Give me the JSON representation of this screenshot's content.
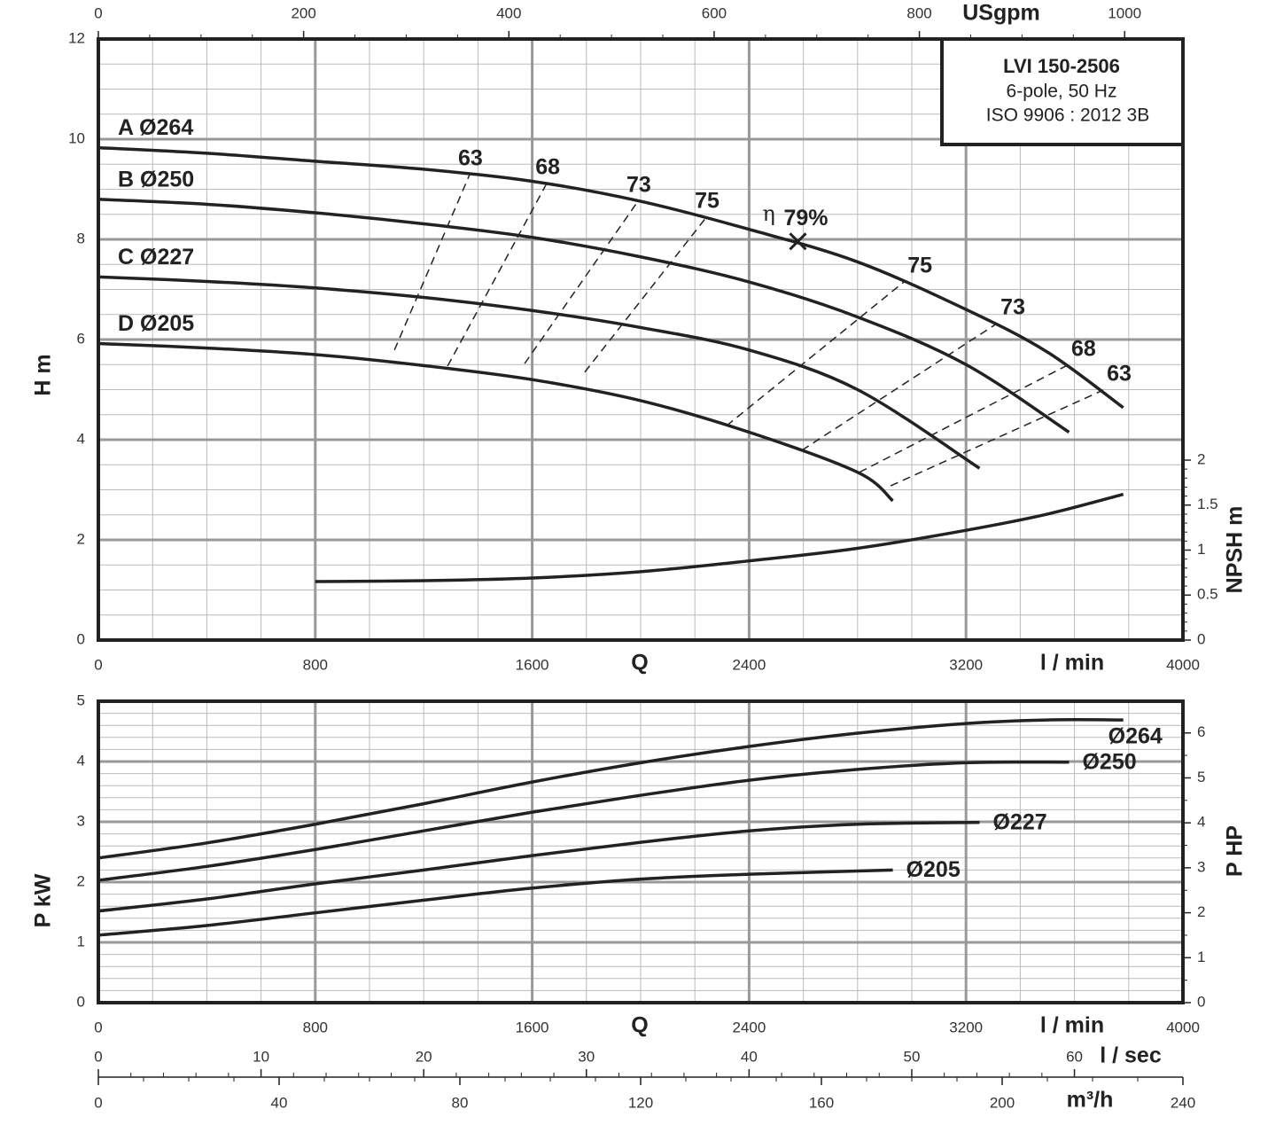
{
  "chart_data": [
    {
      "type": "line",
      "title": "LVI 150-2506",
      "subtitle": "6-pole, 50 Hz",
      "note": "ISO 9906 : 2012 3B",
      "xlabel": "Q",
      "xunit": "l / min",
      "ylabel": "H m",
      "y2label": "NPSH m",
      "x2label": "USgpm",
      "xlim": [
        0,
        4000
      ],
      "xticks": [
        0,
        800,
        1600,
        2400,
        3200,
        4000
      ],
      "x2lim": [
        0,
        1056.8
      ],
      "x2ticks": [
        0,
        200,
        400,
        600,
        800,
        1000
      ],
      "ylim": [
        0,
        12
      ],
      "yticks": [
        0,
        2,
        4,
        6,
        8,
        10,
        12
      ],
      "y2lim": [
        0,
        6.68
      ],
      "y2ticks": [
        0,
        0.5,
        1,
        1.5,
        2
      ],
      "grid": true,
      "color": "#222222",
      "series": [
        {
          "name": "A Ø264",
          "x": [
            0,
            400,
            800,
            1200,
            1600,
            2000,
            2400,
            2800,
            3200,
            3500,
            3780
          ],
          "values": [
            9.83,
            9.72,
            9.56,
            9.4,
            9.16,
            8.76,
            8.2,
            7.55,
            6.6,
            5.75,
            4.64
          ]
        },
        {
          "name": "B Ø250",
          "x": [
            0,
            400,
            800,
            1200,
            1600,
            2000,
            2400,
            2800,
            3200,
            3580
          ],
          "values": [
            8.8,
            8.7,
            8.53,
            8.31,
            8.04,
            7.65,
            7.15,
            6.45,
            5.5,
            4.15
          ]
        },
        {
          "name": "C Ø227",
          "x": [
            0,
            400,
            800,
            1200,
            1600,
            2000,
            2400,
            2800,
            3250
          ],
          "values": [
            7.25,
            7.16,
            7.03,
            6.84,
            6.58,
            6.24,
            5.79,
            5.0,
            3.43
          ]
        },
        {
          "name": "D Ø205",
          "x": [
            0,
            400,
            800,
            1200,
            1600,
            2000,
            2400,
            2800,
            2930
          ],
          "values": [
            5.92,
            5.83,
            5.7,
            5.48,
            5.2,
            4.78,
            4.15,
            3.35,
            2.78
          ]
        },
        {
          "axis": "y2",
          "x": [
            800,
            1200,
            1600,
            2000,
            2400,
            2800,
            3200,
            3500,
            3780
          ],
          "values": [
            0.65,
            0.66,
            0.69,
            0.76,
            0.88,
            1.02,
            1.22,
            1.4,
            1.62
          ]
        }
      ],
      "efficiency_lines": [
        {
          "name": "63",
          "x": [
            1092,
            1369
          ],
          "values": [
            5.79,
            9.29
          ]
        },
        {
          "name": "68",
          "x": [
            1288,
            1654
          ],
          "values": [
            5.47,
            9.12
          ]
        },
        {
          "name": "73",
          "x": [
            1572,
            1990
          ],
          "values": [
            5.52,
            8.76
          ]
        },
        {
          "name": "75",
          "x": [
            1794,
            2242
          ],
          "values": [
            5.35,
            8.44
          ]
        },
        {
          "name": "75",
          "x": [
            2317,
            2971
          ],
          "values": [
            4.28,
            7.15
          ]
        },
        {
          "name": "73",
          "x": [
            2595,
            3314
          ],
          "values": [
            3.79,
            6.32
          ]
        },
        {
          "name": "68",
          "x": [
            2807,
            3575
          ],
          "values": [
            3.35,
            5.49
          ]
        },
        {
          "name": "63",
          "x": [
            2922,
            3706
          ],
          "values": [
            3.08,
            4.99
          ]
        }
      ],
      "best_point": {
        "symbol": "η",
        "label": "79%",
        "x": 2580,
        "y": 7.96
      }
    },
    {
      "type": "line",
      "xlabel": "Q",
      "xunit": "l / min",
      "ylabel": "P kW",
      "y2label": "P HP",
      "xlim": [
        0,
        4000
      ],
      "xticks": [
        0,
        800,
        1600,
        2400,
        3200,
        4000
      ],
      "ylim": [
        0,
        5
      ],
      "yticks": [
        0,
        1,
        2,
        3,
        4,
        5
      ],
      "y2lim": [
        0,
        6.705
      ],
      "y2ticks": [
        0,
        1,
        2,
        3,
        4,
        5,
        6
      ],
      "grid": true,
      "color": "#222222",
      "series": [
        {
          "name": "Ø264",
          "x": [
            0,
            400,
            800,
            1200,
            1600,
            2000,
            2400,
            2800,
            3200,
            3500,
            3780
          ],
          "values": [
            2.4,
            2.65,
            2.96,
            3.3,
            3.66,
            3.98,
            4.25,
            4.47,
            4.63,
            4.69,
            4.69
          ]
        },
        {
          "name": "Ø250",
          "x": [
            0,
            400,
            800,
            1200,
            1600,
            2000,
            2400,
            2800,
            3200,
            3580
          ],
          "values": [
            2.03,
            2.26,
            2.54,
            2.85,
            3.16,
            3.44,
            3.69,
            3.87,
            3.98,
            3.99
          ]
        },
        {
          "name": "Ø227",
          "x": [
            0,
            400,
            800,
            1200,
            1600,
            2000,
            2400,
            2800,
            3250
          ],
          "values": [
            1.52,
            1.72,
            1.97,
            2.2,
            2.44,
            2.66,
            2.85,
            2.96,
            2.99
          ]
        },
        {
          "name": "Ø205",
          "x": [
            0,
            400,
            800,
            1200,
            1600,
            2000,
            2400,
            2930
          ],
          "values": [
            1.12,
            1.28,
            1.49,
            1.7,
            1.9,
            2.05,
            2.13,
            2.2
          ]
        }
      ],
      "extra_axes": [
        {
          "label": "l / sec",
          "lim": [
            0,
            66.67
          ],
          "ticks": [
            0,
            10,
            20,
            30,
            40,
            50,
            60
          ]
        },
        {
          "label": "m³/h",
          "lim": [
            0,
            240
          ],
          "ticks": [
            0,
            40,
            80,
            120,
            160,
            200,
            240
          ]
        }
      ]
    }
  ]
}
